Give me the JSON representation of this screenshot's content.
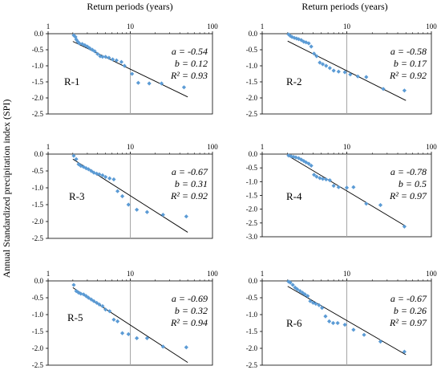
{
  "figure": {
    "top_axis_title": "Return periods (years)",
    "y_axis_title": "Annual Standardized precipitation index (SPI)",
    "x_scale": "log",
    "x_ticks": [
      "1",
      "10",
      "100"
    ],
    "point_color": "#5B9BD5",
    "line_color": "#000000",
    "vline_color": "#A6A6A6"
  },
  "chart_data": [
    {
      "type": "scatter",
      "label": "R-1",
      "stats": [
        "a = -0.54",
        "b = 0.12",
        "R² = 0.93"
      ],
      "xlim": [
        1,
        100
      ],
      "x_scale": "log",
      "ylim": [
        -2.5,
        0
      ],
      "y_ticks": [
        "0.0",
        "-0.5",
        "-1.0",
        "-1.5",
        "-2.0",
        "-2.5"
      ],
      "fit": {
        "x": [
          2,
          50
        ],
        "y": [
          -0.24,
          -1.97
        ]
      },
      "points": [
        [
          2.05,
          -0.05
        ],
        [
          2.15,
          -0.1
        ],
        [
          2.2,
          -0.18
        ],
        [
          2.3,
          -0.25
        ],
        [
          2.4,
          -0.3
        ],
        [
          2.6,
          -0.32
        ],
        [
          2.8,
          -0.36
        ],
        [
          3.0,
          -0.4
        ],
        [
          3.2,
          -0.45
        ],
        [
          3.45,
          -0.5
        ],
        [
          3.7,
          -0.55
        ],
        [
          4.0,
          -0.63
        ],
        [
          4.3,
          -0.7
        ],
        [
          4.6,
          -0.72
        ],
        [
          5.0,
          -0.72
        ],
        [
          5.5,
          -0.75
        ],
        [
          6.1,
          -0.8
        ],
        [
          6.8,
          -0.83
        ],
        [
          7.8,
          -0.88
        ],
        [
          8.5,
          -1.0
        ],
        [
          10.5,
          -1.25
        ],
        [
          12.5,
          -1.53
        ],
        [
          17,
          -1.55
        ],
        [
          24,
          -1.55
        ],
        [
          45,
          -1.67
        ]
      ]
    },
    {
      "type": "scatter",
      "label": "R-2",
      "stats": [
        "a = -0.58",
        "b = 0.17",
        "R² = 0.92"
      ],
      "xlim": [
        1,
        100
      ],
      "x_scale": "log",
      "ylim": [
        -2.5,
        0
      ],
      "y_ticks": [
        "0.0",
        "-0.5",
        "-1.0",
        "-1.5",
        "-2.0",
        "-2.5"
      ],
      "fit": {
        "x": [
          2,
          50
        ],
        "y": [
          -0.23,
          -2.08
        ]
      },
      "points": [
        [
          2.05,
          -0.02
        ],
        [
          2.15,
          -0.07
        ],
        [
          2.25,
          -0.1
        ],
        [
          2.4,
          -0.13
        ],
        [
          2.55,
          -0.15
        ],
        [
          2.7,
          -0.17
        ],
        [
          2.9,
          -0.2
        ],
        [
          3.1,
          -0.25
        ],
        [
          3.3,
          -0.27
        ],
        [
          3.55,
          -0.3
        ],
        [
          3.8,
          -0.4
        ],
        [
          4.1,
          -0.62
        ],
        [
          4.4,
          -0.7
        ],
        [
          4.8,
          -0.9
        ],
        [
          5.2,
          -0.95
        ],
        [
          5.7,
          -1.0
        ],
        [
          6.3,
          -1.07
        ],
        [
          7.0,
          -1.15
        ],
        [
          8.0,
          -1.18
        ],
        [
          9.5,
          -1.2
        ],
        [
          11,
          -1.27
        ],
        [
          13.5,
          -1.33
        ],
        [
          17,
          -1.35
        ],
        [
          27,
          -1.72
        ],
        [
          48,
          -1.77
        ]
      ]
    },
    {
      "type": "scatter",
      "label": "R-3",
      "stats": [
        "a = -0.67",
        "b = 0.31",
        "R² = 0.92"
      ],
      "xlim": [
        1,
        100
      ],
      "x_scale": "log",
      "ylim": [
        -2.5,
        0
      ],
      "y_ticks": [
        "0.0",
        "-0.5",
        "-1.0",
        "-1.5",
        "-2.0",
        "-2.5"
      ],
      "fit": {
        "x": [
          2,
          50
        ],
        "y": [
          -0.15,
          -2.32
        ]
      },
      "points": [
        [
          2.05,
          -0.05
        ],
        [
          2.2,
          -0.15
        ],
        [
          2.35,
          -0.3
        ],
        [
          2.5,
          -0.35
        ],
        [
          2.7,
          -0.38
        ],
        [
          2.9,
          -0.42
        ],
        [
          3.1,
          -0.45
        ],
        [
          3.35,
          -0.5
        ],
        [
          3.6,
          -0.55
        ],
        [
          3.9,
          -0.58
        ],
        [
          4.2,
          -0.6
        ],
        [
          4.6,
          -0.63
        ],
        [
          5.0,
          -0.68
        ],
        [
          5.6,
          -0.72
        ],
        [
          6.3,
          -0.75
        ],
        [
          7.0,
          -1.1
        ],
        [
          8.0,
          -1.25
        ],
        [
          9.5,
          -1.5
        ],
        [
          12,
          -1.65
        ],
        [
          16,
          -1.72
        ],
        [
          25,
          -1.8
        ],
        [
          48,
          -1.85
        ]
      ]
    },
    {
      "type": "scatter",
      "label": "R-4",
      "stats": [
        "a = -0.78",
        "b = 0.5",
        "R² = 0.97"
      ],
      "xlim": [
        1,
        100
      ],
      "x_scale": "log",
      "ylim": [
        -3.0,
        0
      ],
      "y_ticks": [
        "0.0",
        "-0.5",
        "-1.0",
        "-1.5",
        "-2.0",
        "-2.5",
        "-3.0"
      ],
      "fit": {
        "x": [
          2,
          50
        ],
        "y": [
          -0.05,
          -2.62
        ]
      },
      "points": [
        [
          2.05,
          -0.05
        ],
        [
          2.2,
          -0.08
        ],
        [
          2.35,
          -0.1
        ],
        [
          2.5,
          -0.12
        ],
        [
          2.7,
          -0.15
        ],
        [
          2.9,
          -0.2
        ],
        [
          3.1,
          -0.25
        ],
        [
          3.3,
          -0.3
        ],
        [
          3.55,
          -0.35
        ],
        [
          3.8,
          -0.42
        ],
        [
          4.1,
          -0.75
        ],
        [
          4.4,
          -0.82
        ],
        [
          4.8,
          -0.87
        ],
        [
          5.2,
          -0.9
        ],
        [
          5.7,
          -0.92
        ],
        [
          6.3,
          -0.95
        ],
        [
          7.0,
          -1.15
        ],
        [
          8.0,
          -1.2
        ],
        [
          10,
          -1.22
        ],
        [
          12,
          -1.2
        ],
        [
          17,
          -1.8
        ],
        [
          25,
          -1.85
        ],
        [
          48,
          -2.63
        ]
      ]
    },
    {
      "type": "scatter",
      "label": "R-5",
      "stats": [
        "a = -0.69",
        "b = 0.32",
        "R² = 0.94"
      ],
      "xlim": [
        1,
        100
      ],
      "x_scale": "log",
      "ylim": [
        -2.5,
        0
      ],
      "y_ticks": [
        "0.0",
        "-0.5",
        "-1.0",
        "-1.5",
        "-2.0",
        "-2.5"
      ],
      "fit": {
        "x": [
          2,
          50
        ],
        "y": [
          -0.2,
          -2.42
        ]
      },
      "points": [
        [
          2.05,
          -0.12
        ],
        [
          2.2,
          -0.3
        ],
        [
          2.35,
          -0.35
        ],
        [
          2.5,
          -0.38
        ],
        [
          2.7,
          -0.4
        ],
        [
          2.9,
          -0.45
        ],
        [
          3.1,
          -0.5
        ],
        [
          3.35,
          -0.55
        ],
        [
          3.6,
          -0.6
        ],
        [
          3.9,
          -0.65
        ],
        [
          4.2,
          -0.7
        ],
        [
          4.6,
          -0.75
        ],
        [
          5.0,
          -0.85
        ],
        [
          5.6,
          -0.9
        ],
        [
          6.3,
          -1.15
        ],
        [
          7.0,
          -1.2
        ],
        [
          8.0,
          -1.55
        ],
        [
          9.5,
          -1.58
        ],
        [
          12,
          -1.7
        ],
        [
          16,
          -1.7
        ],
        [
          25,
          -1.95
        ],
        [
          48,
          -1.97
        ]
      ]
    },
    {
      "type": "scatter",
      "label": "R-6",
      "stats": [
        "a = -0.67",
        "b = 0.26",
        "R² = 0.97"
      ],
      "xlim": [
        1,
        100
      ],
      "x_scale": "log",
      "ylim": [
        -2.5,
        0
      ],
      "y_ticks": [
        "0.0",
        "-0.5",
        "-1.0",
        "-1.5",
        "-2.0",
        "-2.5"
      ],
      "fit": {
        "x": [
          2,
          50
        ],
        "y": [
          -0.16,
          -2.19
        ]
      },
      "points": [
        [
          2.05,
          -0.02
        ],
        [
          2.15,
          -0.05
        ],
        [
          2.3,
          -0.12
        ],
        [
          2.45,
          -0.2
        ],
        [
          2.6,
          -0.25
        ],
        [
          2.8,
          -0.3
        ],
        [
          3.0,
          -0.35
        ],
        [
          3.2,
          -0.4
        ],
        [
          3.45,
          -0.45
        ],
        [
          3.7,
          -0.6
        ],
        [
          4.0,
          -0.65
        ],
        [
          4.3,
          -0.68
        ],
        [
          4.7,
          -0.72
        ],
        [
          5.1,
          -0.8
        ],
        [
          5.6,
          -1.05
        ],
        [
          6.2,
          -1.2
        ],
        [
          6.9,
          -1.25
        ],
        [
          7.8,
          -1.25
        ],
        [
          9.5,
          -1.3
        ],
        [
          12,
          -1.45
        ],
        [
          16,
          -1.6
        ],
        [
          25,
          -1.8
        ],
        [
          48,
          -2.1
        ]
      ]
    }
  ]
}
